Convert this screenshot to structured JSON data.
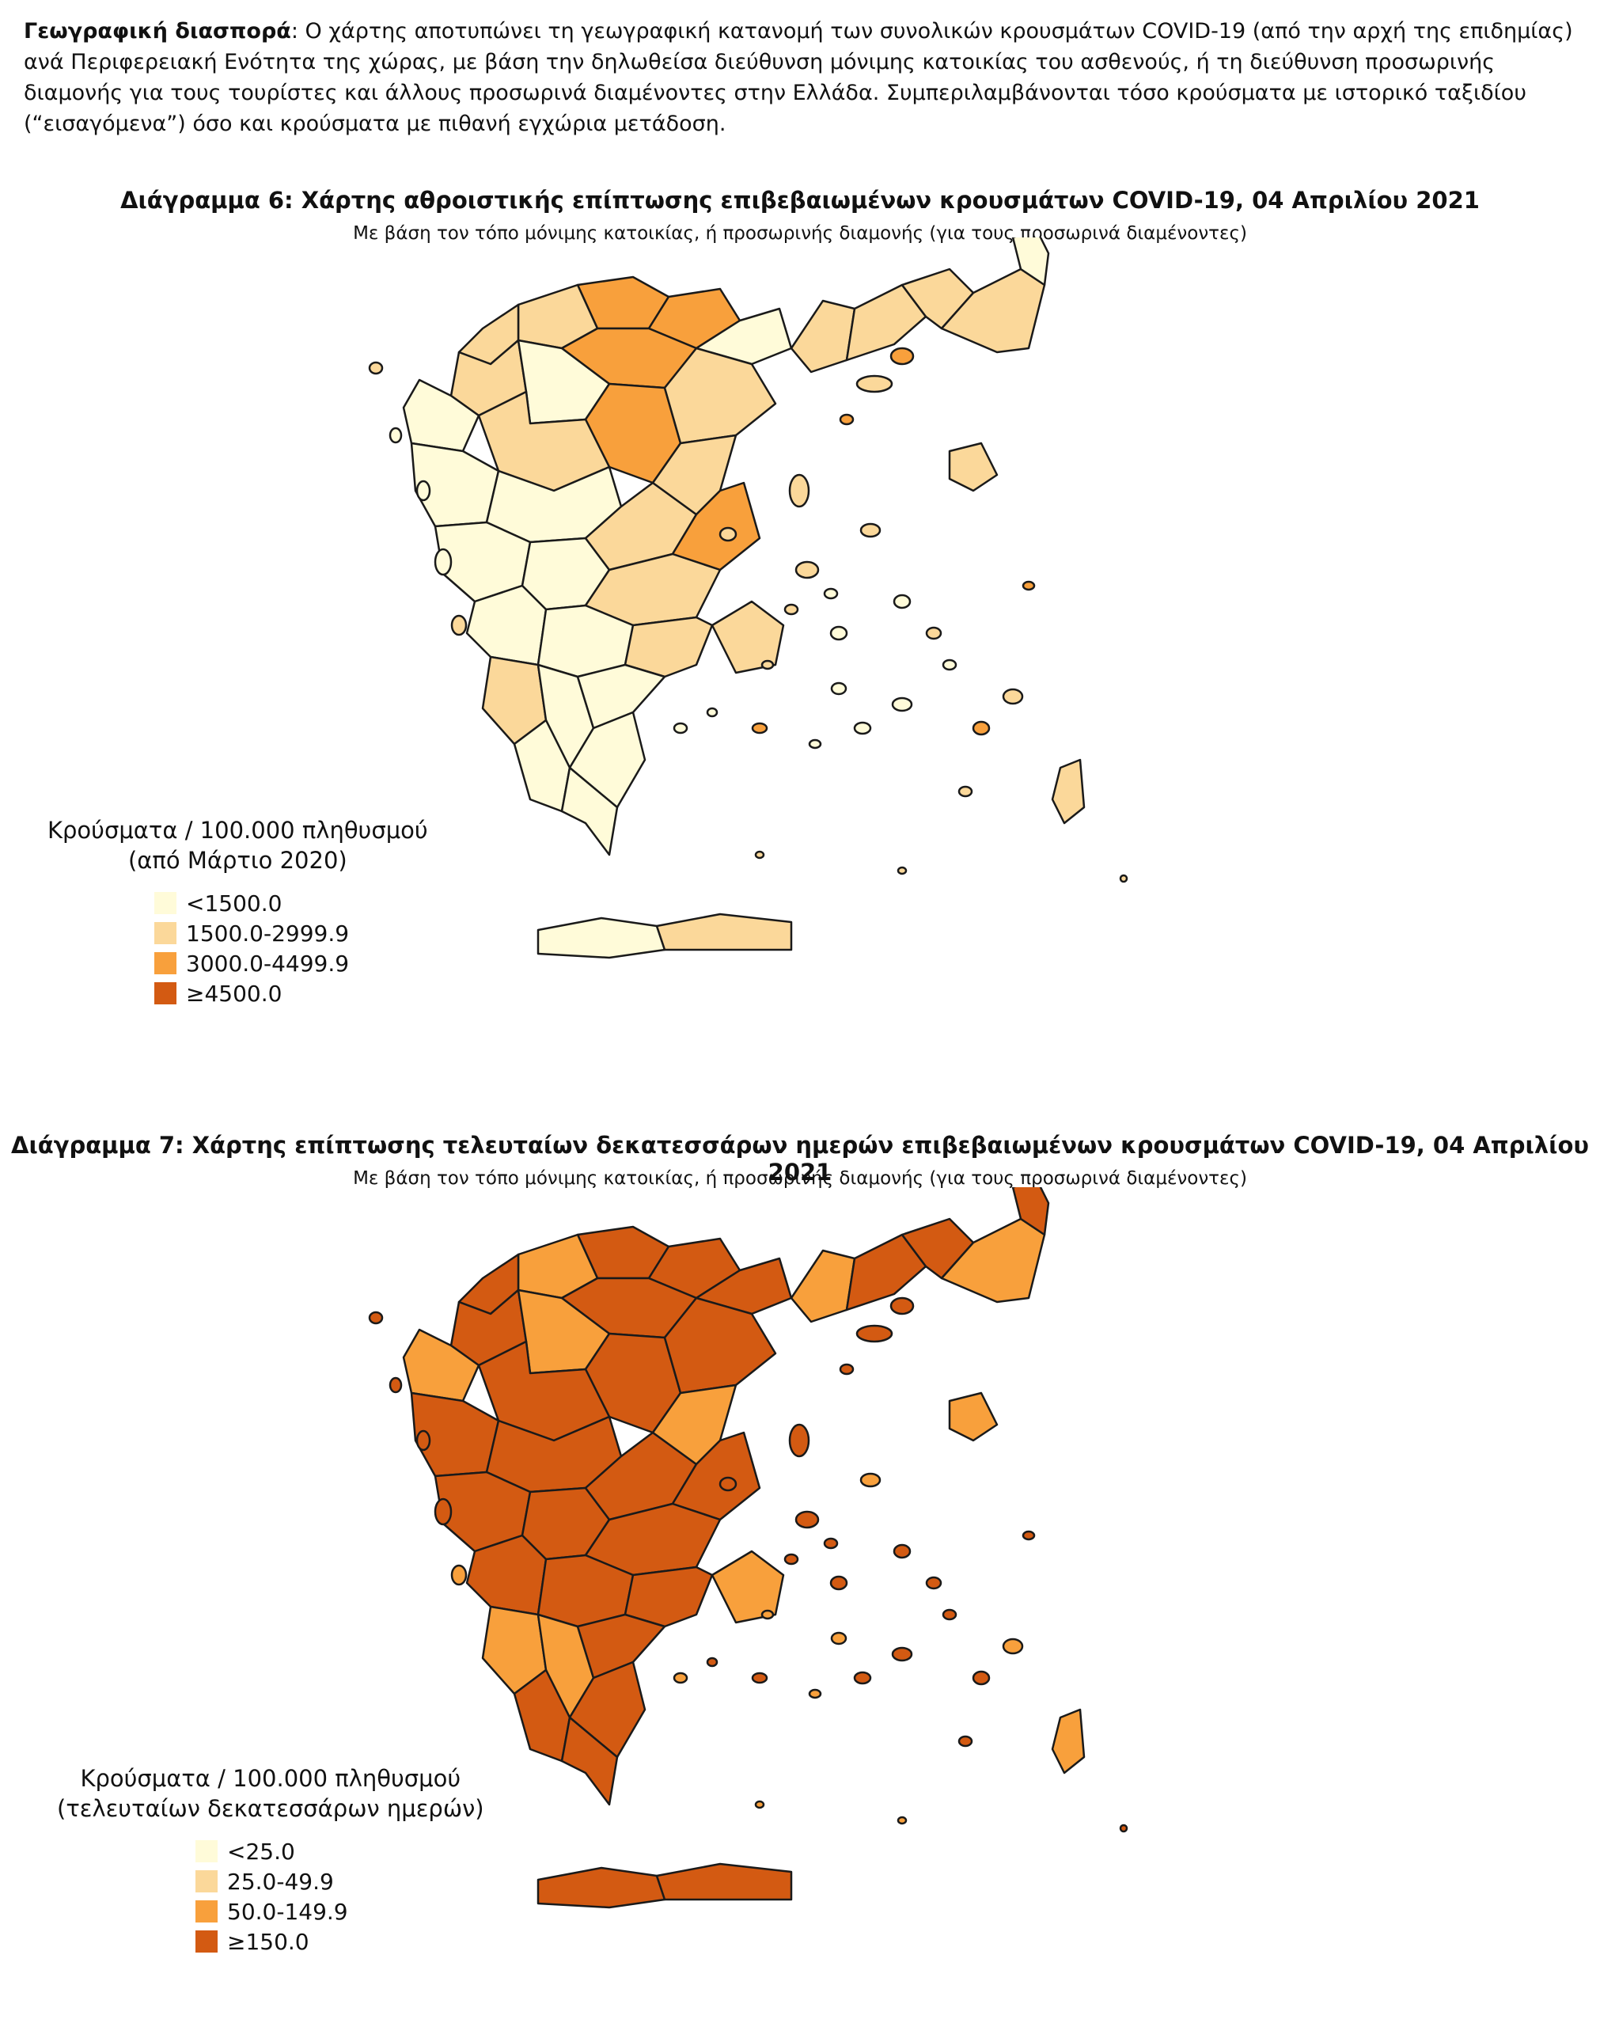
{
  "intro": {
    "lead": "Γεωγραφική διασπορά",
    "text": ": Ο χάρτης αποτυπώνει τη γεωγραφική κατανομή των συνολικών κρουσμάτων COVID-19 (από την αρχή της επιδημίας) ανά Περιφερειακή Ενότητα της χώρας, με βάση την δηλωθείσα διεύθυνση μόνιμης κατοικίας του ασθενούς, ή τη διεύθυνση προσωρινής διαμονής για τους τουρίστες και άλλους προσωρινά διαμένοντες στην Ελλάδα. Συμπεριλαμβάνονται τόσο κρούσματα με ιστορικό ταξιδίου (“εισαγόμενα”) όσο και κρούσματα με πιθανή εγχώρια μετάδοση."
  },
  "colors": {
    "class1": "#fffbd9",
    "class2": "#fbd89a",
    "class3": "#f8a03c",
    "class4": "#d35a12",
    "outline": "#1a1a1a"
  },
  "figures": [
    {
      "title": "Διάγραμμα 6: Χάρτης αθροιστικής επίπτωσης επιβεβαιωμένων κρουσμάτων COVID-19, 04 Απριλίου 2021",
      "subtitle": "Με βάση τον τόπο μόνιμης κατοικίας, ή προσωρινής διαμονής (για τους προσωρινά διαμένοντες)",
      "legend_title_1": "Κρούσματα / 100.000 πληθυσμού",
      "legend_title_2": "(από Μάρτιο 2020)",
      "legend": [
        "<1500.0",
        "1500.0-2999.9",
        "3000.0-4499.9",
        "≥4500.0"
      ],
      "region_classes": [
        3,
        2,
        3,
        2,
        1,
        3,
        2,
        2,
        2,
        2,
        1,
        2,
        1,
        1,
        3,
        2,
        2,
        1,
        1,
        1,
        1,
        2,
        2,
        3,
        2,
        2,
        1,
        1,
        2,
        2,
        1,
        1,
        1,
        1,
        1,
        2,
        2,
        1,
        2
      ]
    },
    {
      "title": "Διάγραμμα 7: Χάρτης επίπτωσης τελευταίων δεκατεσσάρων ημερών επιβεβαιωμένων κρουσμάτων COVID-19, 04 Απριλίου 2021",
      "subtitle": "Με βάση τον τόπο μόνιμης κατοικίας, ή προσωρινής διαμονής (για τους προσωρινά διαμένοντες)",
      "legend_title_1": "Κρούσματα / 100.000 πληθυσμού",
      "legend_title_2": "(τελευταίων δεκατεσσάρων ημερών)",
      "legend": [
        "<25.0",
        "25.0-49.9",
        "50.0-149.9",
        "≥150.0"
      ],
      "region_classes": [
        4,
        3,
        4,
        4,
        4,
        4,
        3,
        4,
        4,
        3,
        4,
        4,
        3,
        3,
        4,
        4,
        4,
        4,
        4,
        4,
        4,
        4,
        3,
        4,
        4,
        3,
        4,
        4,
        4,
        3,
        3,
        4,
        4,
        4,
        4,
        3,
        3,
        4,
        4
      ]
    }
  ]
}
